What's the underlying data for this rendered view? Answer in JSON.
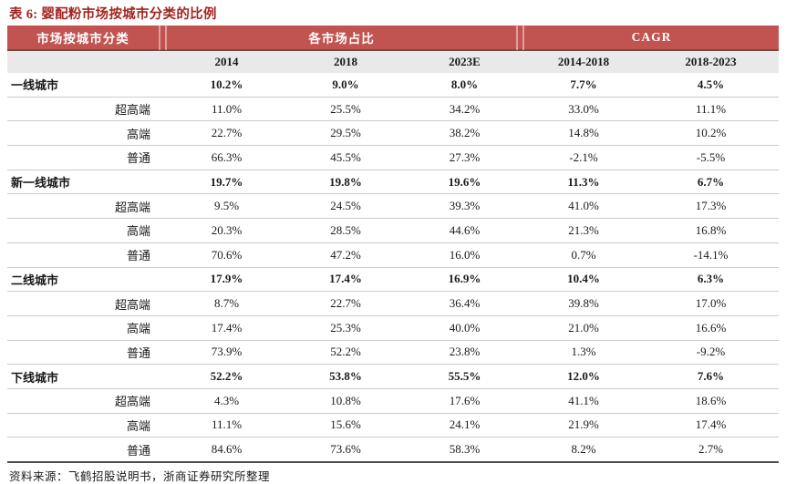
{
  "title": "表 6: 婴配粉市场按城市分类的比例",
  "colors": {
    "band_red": "#C15350",
    "title_red": "#A3251F",
    "subheader_bg": "#EAE9E9",
    "table_bottom_border": "#4d4d4d"
  },
  "header": {
    "group1": "市场按城市分类",
    "group2": "各市场占比",
    "group3": "CAGR"
  },
  "columns": [
    "2014",
    "2018",
    "2023E",
    "2014-2018",
    "2018-2023"
  ],
  "table": {
    "rows": [
      {
        "label": "一线城市",
        "type": "group",
        "values": [
          "10.2%",
          "9.0%",
          "8.0%",
          "7.7%",
          "4.5%"
        ]
      },
      {
        "label": "超高端",
        "type": "sub",
        "values": [
          "11.0%",
          "25.5%",
          "34.2%",
          "33.0%",
          "11.1%"
        ]
      },
      {
        "label": "高端",
        "type": "sub",
        "values": [
          "22.7%",
          "29.5%",
          "38.2%",
          "14.8%",
          "10.2%"
        ]
      },
      {
        "label": "普通",
        "type": "sub",
        "values": [
          "66.3%",
          "45.5%",
          "27.3%",
          "-2.1%",
          "-5.5%"
        ]
      },
      {
        "label": "新一线城市",
        "type": "group",
        "values": [
          "19.7%",
          "19.8%",
          "19.6%",
          "11.3%",
          "6.7%"
        ]
      },
      {
        "label": "超高端",
        "type": "sub",
        "values": [
          "9.5%",
          "24.5%",
          "39.3%",
          "41.0%",
          "17.3%"
        ]
      },
      {
        "label": "高端",
        "type": "sub",
        "values": [
          "20.3%",
          "28.5%",
          "44.6%",
          "21.3%",
          "16.8%"
        ]
      },
      {
        "label": "普通",
        "type": "sub",
        "values": [
          "70.6%",
          "47.2%",
          "16.0%",
          "0.7%",
          "-14.1%"
        ]
      },
      {
        "label": "二线城市",
        "type": "group",
        "values": [
          "17.9%",
          "17.4%",
          "16.9%",
          "10.4%",
          "6.3%"
        ]
      },
      {
        "label": "超高端",
        "type": "sub",
        "values": [
          "8.7%",
          "22.7%",
          "36.4%",
          "39.8%",
          "17.0%"
        ]
      },
      {
        "label": "高端",
        "type": "sub",
        "values": [
          "17.4%",
          "25.3%",
          "40.0%",
          "21.0%",
          "16.6%"
        ]
      },
      {
        "label": "普通",
        "type": "sub",
        "values": [
          "73.9%",
          "52.2%",
          "23.8%",
          "1.3%",
          "-9.2%"
        ]
      },
      {
        "label": "下线城市",
        "type": "group",
        "values": [
          "52.2%",
          "53.8%",
          "55.5%",
          "12.0%",
          "7.6%"
        ]
      },
      {
        "label": "超高端",
        "type": "sub",
        "values": [
          "4.3%",
          "10.8%",
          "17.6%",
          "41.1%",
          "18.6%"
        ]
      },
      {
        "label": "高端",
        "type": "sub",
        "values": [
          "11.1%",
          "15.6%",
          "24.1%",
          "21.9%",
          "17.4%"
        ]
      },
      {
        "label": "普通",
        "type": "sub",
        "values": [
          "84.6%",
          "73.6%",
          "58.3%",
          "8.2%",
          "2.7%"
        ]
      }
    ]
  },
  "footer": {
    "source": "资料来源：飞鹤招股说明书，浙商证券研究所整理"
  }
}
